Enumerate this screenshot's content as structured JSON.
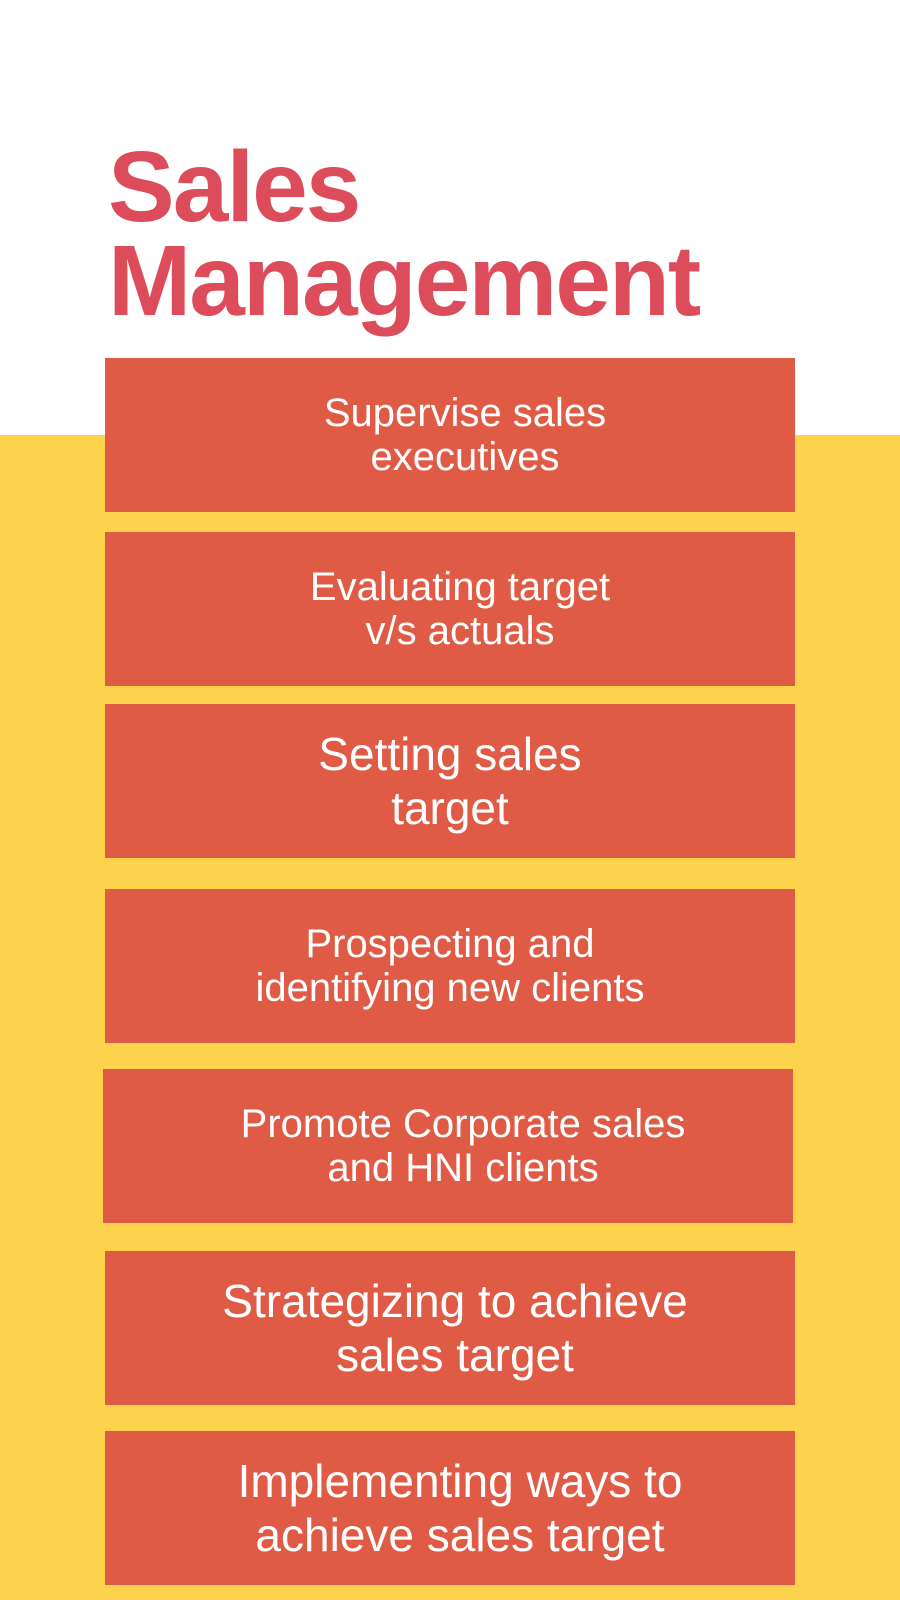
{
  "title": {
    "line1": "Sales",
    "line2": "Management"
  },
  "items": [
    {
      "label": "Supervise sales\nexecutives"
    },
    {
      "label": "Evaluating target\nv/s actuals"
    },
    {
      "label": "Setting sales\ntarget"
    },
    {
      "label": "Prospecting and\nidentifying new clients"
    },
    {
      "label": "Promote Corporate sales\nand HNI clients"
    },
    {
      "label": "Strategizing to achieve\nsales target"
    },
    {
      "label": "Implementing ways to\nachieve sales target"
    }
  ],
  "colors": {
    "title": "#dc4c5b",
    "box": "#df5b46",
    "band": "#fdd24d",
    "background": "#ffffff",
    "box_text": "#ffffff"
  }
}
